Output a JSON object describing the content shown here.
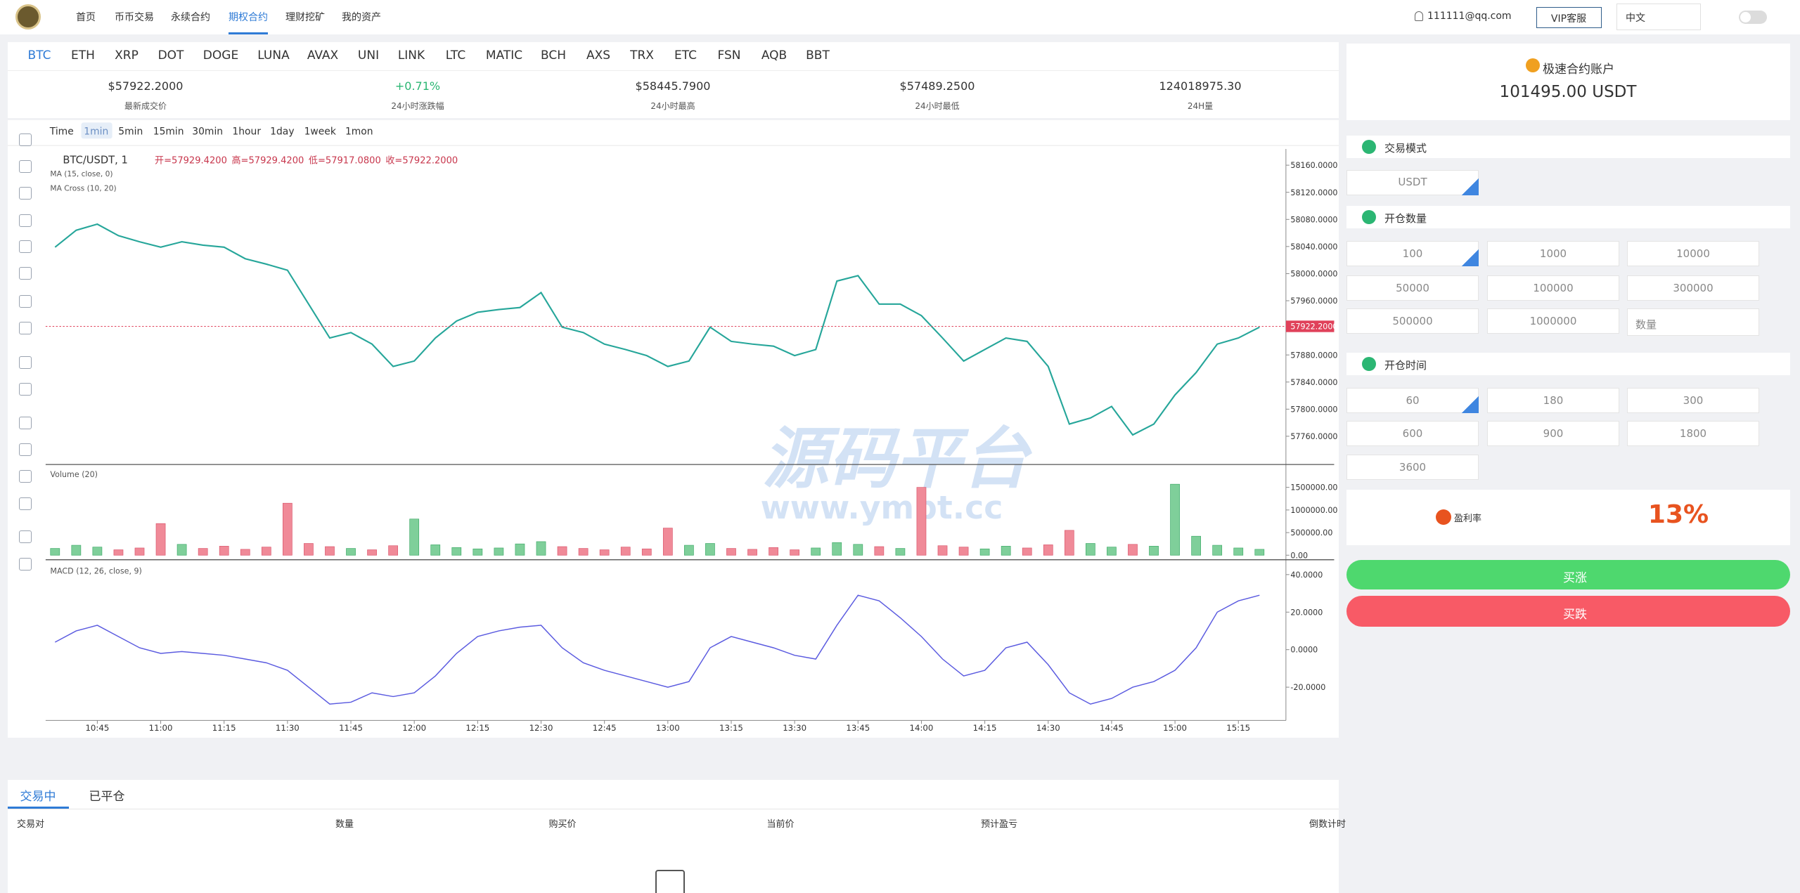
{
  "nav": {
    "items": [
      "首页",
      "币币交易",
      "永续合约",
      "期权合约",
      "理财挖矿",
      "我的资产"
    ],
    "active": 3,
    "user": "111111@qq.com",
    "vip": "VIP客服",
    "lang": "中文"
  },
  "coins": {
    "items": [
      "BTC",
      "ETH",
      "XRP",
      "DOT",
      "DOGE",
      "LUNA",
      "AVAX",
      "UNI",
      "LINK",
      "LTC",
      "MATIC",
      "BCH",
      "AXS",
      "TRX",
      "ETC",
      "FSN",
      "AQB",
      "BBT"
    ],
    "active": 0
  },
  "stats": [
    {
      "value": "$57922.2000",
      "label": "最新成交价"
    },
    {
      "value": "+0.71%",
      "label": "24小时涨跌幅"
    },
    {
      "value": "$58445.7900",
      "label": "24小时最高"
    },
    {
      "value": "$57489.2500",
      "label": "24小时最低"
    },
    {
      "value": "124018975.30",
      "label": "24H量"
    }
  ],
  "chart": {
    "timeframes": [
      "Time",
      "1min",
      "5min",
      "15min",
      "30min",
      "1hour",
      "1day",
      "1week",
      "1mon"
    ],
    "active": 1,
    "title": "BTC/USDT, 1",
    "ohlc": [
      "开=57929.4200",
      "高=57929.4200",
      "低=57917.0800",
      "收=57922.2000"
    ],
    "studies": [
      "MA (15, close, 0)",
      "MA Cross (10, 20)"
    ],
    "categories": [
      null,
      null,
      "10:45",
      null,
      null,
      "11:00",
      null,
      null,
      "11:15",
      null,
      null,
      "11:30",
      null,
      null,
      "11:45",
      null,
      null,
      "12:00",
      null,
      null,
      "12:15",
      null,
      null,
      "12:30",
      null,
      null,
      "12:45",
      null,
      null,
      "13:00",
      null,
      null,
      "13:15",
      null,
      null,
      "13:30",
      null,
      null,
      "13:45",
      null,
      null,
      "14:00",
      null,
      null,
      "14:15",
      null,
      null,
      "14:30",
      null,
      null,
      "14:45",
      null,
      null,
      "15:00",
      null,
      null,
      "15:15",
      null
    ],
    "price": {
      "color": "#26a69a",
      "values": [
        58039,
        58064,
        58073,
        58056,
        58047,
        58039,
        58047,
        58042,
        58039,
        58022,
        58014,
        58005,
        57955,
        57905,
        57913,
        57896,
        57863,
        57871,
        57905,
        57930,
        57943,
        57947,
        57950,
        57972,
        57921,
        57913,
        57896,
        57888,
        57879,
        57863,
        57871,
        57921,
        57900,
        57896,
        57893,
        57879,
        57888,
        57989,
        57997,
        57955,
        57955,
        57938,
        57905,
        57871,
        57888,
        57905,
        57900,
        57863,
        57778,
        57787,
        57804,
        57762,
        57778,
        57821,
        57854,
        57896,
        57905,
        57921
      ],
      "ylim": [
        57720,
        58184
      ],
      "yticks": [
        {
          "value": 58160,
          "label": "58160.0000"
        },
        {
          "value": 58120,
          "label": "58120.0000"
        },
        {
          "value": 58080,
          "label": "58080.0000"
        },
        {
          "value": 58040,
          "label": "58040.0000"
        },
        {
          "value": 58000,
          "label": "58000.0000"
        },
        {
          "value": 57960,
          "label": "57960.0000"
        },
        {
          "value": 57880,
          "label": "57880.0000"
        },
        {
          "value": 57840,
          "label": "57840.0000"
        },
        {
          "value": 57800,
          "label": "57800.0000"
        },
        {
          "value": 57760,
          "label": "57760.0000"
        }
      ],
      "last": {
        "value": 57922.2,
        "label": "57922.2000",
        "color": "#e0415a"
      }
    },
    "volume": {
      "name": "Volume (20)",
      "up_color": "#7fcf9a",
      "down_color": "#f08a98",
      "values": [
        150000,
        220000,
        180000,
        120000,
        160000,
        700000,
        240000,
        150000,
        200000,
        130000,
        180000,
        1150000,
        260000,
        190000,
        150000,
        120000,
        210000,
        800000,
        230000,
        170000,
        140000,
        160000,
        250000,
        300000,
        190000,
        150000,
        120000,
        180000,
        140000,
        600000,
        220000,
        260000,
        150000,
        130000,
        170000,
        120000,
        160000,
        280000,
        240000,
        190000,
        150000,
        1500000,
        210000,
        180000,
        140000,
        200000,
        160000,
        230000,
        550000,
        260000,
        180000,
        240000,
        200000,
        1570000,
        420000,
        220000,
        160000,
        130000
      ],
      "ylim": [
        -75000,
        1980000
      ],
      "yticks": [
        {
          "value": 1500000,
          "label": "1500000.00"
        },
        {
          "value": 1000000,
          "label": "1000000.00"
        },
        {
          "value": 500000,
          "label": "500000.00"
        },
        {
          "value": 0,
          "label": "0.00"
        }
      ]
    },
    "macd": {
      "name": "MACD (12, 26, close, 9)",
      "color": "#5b5be0",
      "values": [
        4,
        10,
        13,
        7,
        1,
        -2,
        -1,
        -2,
        -3,
        -5,
        -7,
        -11,
        -20,
        -29,
        -28,
        -23,
        -25,
        -23,
        -14,
        -2,
        7,
        10,
        12,
        13,
        1,
        -7,
        -11,
        -14,
        -17,
        -20,
        -17,
        1,
        7,
        4,
        1,
        -3,
        -5,
        13,
        29,
        26,
        17,
        7,
        -5,
        -14,
        -11,
        1,
        4,
        -8,
        -23,
        -29,
        -26,
        -20,
        -17,
        -11,
        1,
        20,
        26,
        29
      ],
      "ylim": [
        -37.7,
        47.3
      ],
      "yticks": [
        {
          "value": 40,
          "label": "40.0000"
        },
        {
          "value": 20,
          "label": "20.0000"
        },
        {
          "value": 0,
          "label": "0.0000"
        },
        {
          "value": -20,
          "label": "-20.0000"
        }
      ]
    }
  },
  "watermark": [
    "源码平台",
    "www.ympt.cc"
  ],
  "account": {
    "title": "极速合约账户",
    "balance": "101495.00 USDT"
  },
  "trade": {
    "mode_title": "交易模式",
    "mode": "USDT",
    "qty_title": "开仓数量",
    "qty": [
      "100",
      "1000",
      "10000",
      "50000",
      "100000",
      "300000",
      "500000",
      "1000000"
    ],
    "qty_placeholder": "数量",
    "time_title": "开仓时间",
    "times": [
      "60",
      "180",
      "300",
      "600",
      "900",
      "1800",
      "3600"
    ],
    "profit_label": "盈利率",
    "profit": "13%",
    "buy": "买涨",
    "sell": "买跌"
  },
  "orders": {
    "tabs": [
      "交易中",
      "已平仓"
    ],
    "columns": [
      "交易对",
      "数量",
      "购买价",
      "当前价",
      "预计盈亏",
      "倒数计时"
    ]
  }
}
